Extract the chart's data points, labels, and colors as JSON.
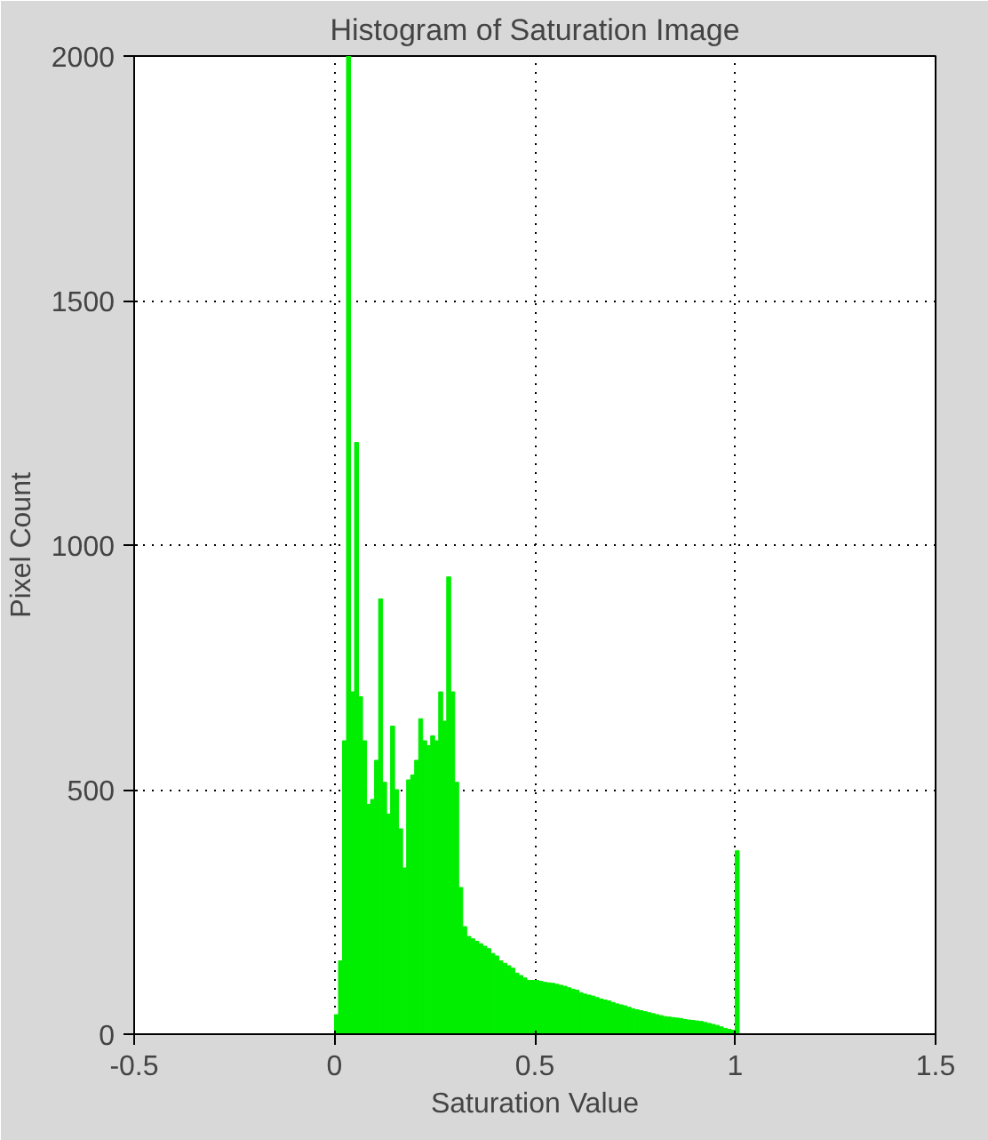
{
  "chart_data": {
    "type": "histogram",
    "title": "Histogram of Saturation Image",
    "xlabel": "Saturation Value",
    "ylabel": "Pixel Count",
    "color": "#00ee00",
    "bins": [
      0,
      0.01,
      0.02,
      0.03,
      0.04,
      0.05,
      0.06,
      0.07,
      0.08,
      0.09,
      0.1,
      0.11,
      0.12,
      0.13,
      0.14,
      0.15,
      0.16,
      0.17,
      0.18,
      0.19,
      0.2,
      0.21,
      0.22,
      0.23,
      0.24,
      0.25,
      0.26,
      0.27,
      0.28,
      0.29,
      0.3,
      0.31,
      0.32,
      0.33,
      0.34,
      0.35,
      0.36,
      0.37,
      0.38,
      0.39,
      0.4,
      0.41,
      0.42,
      0.43,
      0.44,
      0.45,
      0.46,
      0.47,
      0.48,
      0.49,
      0.5,
      0.51,
      0.52,
      0.53,
      0.54,
      0.55,
      0.56,
      0.57,
      0.58,
      0.59,
      0.6,
      0.61,
      0.62,
      0.63,
      0.64,
      0.65,
      0.66,
      0.67,
      0.68,
      0.69,
      0.7,
      0.71,
      0.72,
      0.73,
      0.74,
      0.75,
      0.76,
      0.77,
      0.78,
      0.79,
      0.8,
      0.81,
      0.82,
      0.83,
      0.84,
      0.85,
      0.86,
      0.87,
      0.88,
      0.89,
      0.9,
      0.91,
      0.92,
      0.93,
      0.94,
      0.95,
      0.96,
      0.97,
      0.98,
      0.99,
      1.0,
      1.01
    ],
    "values": [
      40,
      150,
      600,
      2000,
      700,
      1210,
      690,
      600,
      470,
      480,
      560,
      890,
      515,
      450,
      630,
      500,
      420,
      340,
      520,
      530,
      560,
      645,
      600,
      590,
      610,
      600,
      700,
      640,
      935,
      700,
      515,
      300,
      220,
      200,
      195,
      190,
      185,
      180,
      175,
      165,
      160,
      150,
      145,
      140,
      135,
      125,
      120,
      115,
      110,
      110,
      110,
      108,
      106,
      105,
      104,
      102,
      100,
      98,
      95,
      92,
      90,
      85,
      82,
      80,
      78,
      75,
      72,
      70,
      68,
      65,
      62,
      60,
      58,
      55,
      52,
      50,
      48,
      46,
      44,
      42,
      40,
      38,
      36,
      35,
      34,
      33,
      32,
      30,
      29,
      28,
      27,
      26,
      24,
      22,
      20,
      18,
      15,
      12,
      10,
      8,
      375
    ],
    "xlim": [
      -0.5,
      1.5
    ],
    "ylim": [
      0,
      2000
    ],
    "xticks": [
      -0.5,
      0,
      0.5,
      1,
      1.5
    ],
    "yticks": [
      0,
      500,
      1000,
      1500,
      2000
    ],
    "grid": true
  }
}
